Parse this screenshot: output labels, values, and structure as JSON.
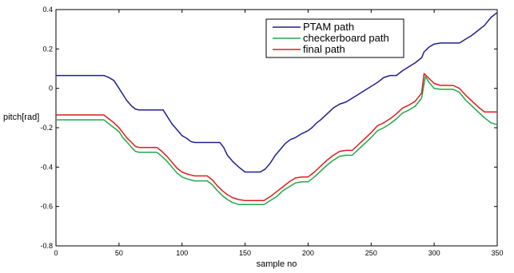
{
  "chart_data": {
    "type": "line",
    "xlabel": "sample no",
    "ylabel": "pitch[rad]",
    "xlim": [
      0,
      350
    ],
    "ylim": [
      -0.8,
      0.4
    ],
    "xticks": [
      0,
      50,
      100,
      150,
      200,
      250,
      300,
      350
    ],
    "yticks": [
      -0.8,
      -0.6,
      -0.4,
      -0.2,
      0,
      0.2,
      0.4
    ],
    "ytick_labels": [
      "-0.8",
      "-0.6",
      "-0.4",
      "-0.2",
      "0",
      "0.2",
      "0.4"
    ],
    "xtick_labels": [
      "0",
      "50",
      "100",
      "150",
      "200",
      "250",
      "300",
      "350"
    ],
    "grid": false,
    "legend_position": "top-right",
    "series": [
      {
        "name": "PTAM path",
        "color": "#1f1f8f",
        "x": [
          0,
          38,
          42,
          46,
          50,
          53,
          56,
          60,
          63,
          66,
          85,
          88,
          92,
          96,
          100,
          104,
          107,
          110,
          130,
          133,
          136,
          140,
          145,
          148,
          150,
          162,
          166,
          170,
          174,
          178,
          182,
          186,
          190,
          195,
          200,
          203,
          206,
          210,
          215,
          220,
          225,
          230,
          235,
          240,
          245,
          250,
          255,
          260,
          265,
          270,
          275,
          280,
          285,
          290,
          292,
          296,
          300,
          305,
          320,
          330,
          340,
          345,
          350
        ],
        "y": [
          0.065,
          0.065,
          0.055,
          0.04,
          0.0,
          -0.03,
          -0.06,
          -0.09,
          -0.105,
          -0.11,
          -0.11,
          -0.14,
          -0.18,
          -0.21,
          -0.24,
          -0.255,
          -0.27,
          -0.275,
          -0.275,
          -0.3,
          -0.34,
          -0.37,
          -0.4,
          -0.415,
          -0.425,
          -0.425,
          -0.41,
          -0.38,
          -0.34,
          -0.31,
          -0.28,
          -0.26,
          -0.25,
          -0.23,
          -0.215,
          -0.2,
          -0.18,
          -0.16,
          -0.13,
          -0.1,
          -0.08,
          -0.07,
          -0.05,
          -0.03,
          -0.01,
          0.01,
          0.03,
          0.055,
          0.065,
          0.065,
          0.09,
          0.11,
          0.13,
          0.155,
          0.185,
          0.21,
          0.225,
          0.23,
          0.23,
          0.27,
          0.32,
          0.36,
          0.385
        ]
      },
      {
        "name": "checkerboard path",
        "color": "#1fa84a",
        "x": [
          0,
          38,
          42,
          46,
          50,
          53,
          56,
          60,
          63,
          66,
          80,
          84,
          88,
          92,
          96,
          100,
          104,
          107,
          110,
          120,
          124,
          128,
          132,
          136,
          140,
          145,
          150,
          165,
          170,
          175,
          180,
          185,
          190,
          195,
          200,
          205,
          210,
          215,
          220,
          225,
          230,
          235,
          240,
          245,
          250,
          255,
          260,
          265,
          270,
          275,
          280,
          285,
          290,
          293,
          296,
          300,
          305,
          315,
          320,
          325,
          330,
          335,
          340,
          345,
          350
        ],
        "y": [
          -0.16,
          -0.16,
          -0.18,
          -0.2,
          -0.22,
          -0.25,
          -0.27,
          -0.3,
          -0.32,
          -0.325,
          -0.325,
          -0.345,
          -0.37,
          -0.4,
          -0.43,
          -0.45,
          -0.46,
          -0.465,
          -0.47,
          -0.47,
          -0.49,
          -0.52,
          -0.545,
          -0.565,
          -0.58,
          -0.59,
          -0.59,
          -0.59,
          -0.57,
          -0.55,
          -0.52,
          -0.5,
          -0.48,
          -0.475,
          -0.475,
          -0.45,
          -0.42,
          -0.39,
          -0.365,
          -0.345,
          -0.34,
          -0.34,
          -0.31,
          -0.28,
          -0.25,
          -0.215,
          -0.2,
          -0.18,
          -0.155,
          -0.125,
          -0.11,
          -0.09,
          -0.05,
          0.06,
          0.03,
          0.0,
          -0.005,
          -0.005,
          -0.02,
          -0.06,
          -0.09,
          -0.12,
          -0.15,
          -0.175,
          -0.185
        ]
      },
      {
        "name": "final path",
        "color": "#e01b1b",
        "x": [
          0,
          38,
          42,
          46,
          50,
          53,
          56,
          60,
          63,
          66,
          80,
          84,
          88,
          92,
          96,
          100,
          104,
          107,
          110,
          120,
          124,
          128,
          132,
          136,
          140,
          145,
          150,
          165,
          170,
          175,
          180,
          185,
          190,
          195,
          200,
          205,
          210,
          215,
          220,
          225,
          230,
          235,
          240,
          245,
          250,
          255,
          260,
          265,
          270,
          275,
          280,
          285,
          290,
          292,
          296,
          300,
          305,
          315,
          320,
          325,
          330,
          335,
          340,
          345,
          350
        ],
        "y": [
          -0.135,
          -0.135,
          -0.155,
          -0.175,
          -0.2,
          -0.225,
          -0.25,
          -0.275,
          -0.295,
          -0.3,
          -0.3,
          -0.32,
          -0.345,
          -0.375,
          -0.405,
          -0.425,
          -0.435,
          -0.44,
          -0.445,
          -0.445,
          -0.465,
          -0.495,
          -0.52,
          -0.54,
          -0.555,
          -0.565,
          -0.57,
          -0.57,
          -0.55,
          -0.525,
          -0.5,
          -0.475,
          -0.455,
          -0.45,
          -0.45,
          -0.425,
          -0.395,
          -0.365,
          -0.34,
          -0.32,
          -0.315,
          -0.315,
          -0.285,
          -0.255,
          -0.225,
          -0.19,
          -0.175,
          -0.155,
          -0.13,
          -0.1,
          -0.085,
          -0.065,
          -0.025,
          0.075,
          0.05,
          0.025,
          0.015,
          0.015,
          0.0,
          -0.035,
          -0.065,
          -0.095,
          -0.12,
          -0.12,
          -0.12
        ]
      }
    ]
  }
}
